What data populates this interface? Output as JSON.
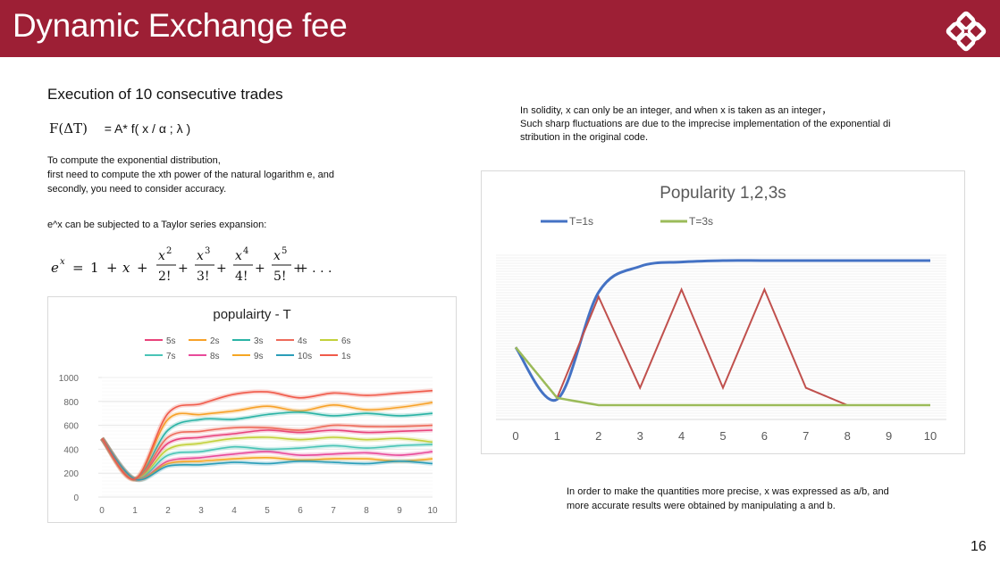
{
  "header": {
    "title": "Dynamic Exchange fee",
    "logo_icon": "diamond-knot-logo"
  },
  "left": {
    "subtitle": "Execution of 10 consecutive trades",
    "formula_lhs": "F(ΔT)",
    "formula_rhs": "= A* f( x / α ; λ )",
    "intro_lines": [
      "To compute the exponential distribution,",
      "first need to compute the xth power of the natural logarithm e, and",
      "secondly, you need to consider accuracy."
    ],
    "taylor_intro": "e^x can be subjected to a Taylor series expansion:",
    "taylor": {
      "lhs_base": "e",
      "lhs_exp": "x",
      "equals": "=",
      "one": "1",
      "plus": "+",
      "x": "x",
      "terms": [
        {
          "num_base": "x",
          "num_exp": "2",
          "den": "2!"
        },
        {
          "num_base": "x",
          "num_exp": "3",
          "den": "3!"
        },
        {
          "num_base": "x",
          "num_exp": "4",
          "den": "4!"
        },
        {
          "num_base": "x",
          "num_exp": "5",
          "den": "5!"
        }
      ],
      "ellipsis": "+ . . ."
    }
  },
  "right": {
    "note_lines": [
      "In solidity, x can only be an integer, and when x is taken as an integer，",
      "Such sharp fluctuations are due to the imprecise implementation of the exponential di",
      "stribution in the original code."
    ],
    "bottom_lines": [
      "In order to make the quantities more precise, x was expressed as a/b, and",
      "more accurate results were obtained by manipulating a and b."
    ]
  },
  "page_number": "16",
  "chart_data": [
    {
      "type": "line",
      "title": "populairty - T",
      "x": [
        0,
        1,
        2,
        3,
        4,
        5,
        6,
        7,
        8,
        9,
        10
      ],
      "xlim": [
        0,
        10
      ],
      "ylim": [
        0,
        1000
      ],
      "yticks": [
        0,
        200,
        400,
        600,
        800,
        1000
      ],
      "grid": true,
      "legend_position": "top",
      "series": [
        {
          "name": "5s",
          "color": "#e8427a",
          "values": [
            490,
            150,
            450,
            500,
            530,
            560,
            540,
            560,
            540,
            550,
            560
          ]
        },
        {
          "name": "2s",
          "color": "#f7a128",
          "values": [
            490,
            150,
            650,
            690,
            720,
            760,
            720,
            770,
            730,
            750,
            790
          ]
        },
        {
          "name": "3s",
          "color": "#2ab3a5",
          "values": [
            490,
            150,
            560,
            650,
            650,
            690,
            710,
            680,
            700,
            680,
            700
          ]
        },
        {
          "name": "4s",
          "color": "#ee6a5a",
          "values": [
            490,
            150,
            500,
            550,
            580,
            580,
            560,
            600,
            590,
            590,
            600
          ]
        },
        {
          "name": "6s",
          "color": "#c2d13a",
          "values": [
            490,
            150,
            400,
            450,
            490,
            500,
            480,
            500,
            480,
            490,
            460
          ]
        },
        {
          "name": "7s",
          "color": "#49c4b6",
          "values": [
            490,
            150,
            350,
            380,
            420,
            400,
            410,
            430,
            410,
            430,
            440
          ]
        },
        {
          "name": "8s",
          "color": "#e84a9a",
          "values": [
            490,
            150,
            300,
            330,
            360,
            380,
            350,
            360,
            370,
            350,
            380
          ]
        },
        {
          "name": "9s",
          "color": "#f5a623",
          "values": [
            490,
            150,
            280,
            300,
            320,
            330,
            310,
            320,
            320,
            300,
            320
          ]
        },
        {
          "name": "10s",
          "color": "#2a9db8",
          "values": [
            490,
            150,
            260,
            270,
            290,
            280,
            300,
            290,
            280,
            300,
            280
          ]
        },
        {
          "name": "1s",
          "color": "#f05a4a",
          "values": [
            490,
            150,
            700,
            780,
            860,
            880,
            830,
            870,
            850,
            870,
            890
          ]
        }
      ]
    },
    {
      "type": "line",
      "title": "Popularity 1,2,3s",
      "x": [
        0,
        1,
        2,
        3,
        4,
        5,
        6,
        7,
        8,
        9,
        10
      ],
      "xlim": [
        0,
        10
      ],
      "grid": true,
      "legend_position": "top",
      "series": [
        {
          "name": "T=1s",
          "color": "#4472c4",
          "values": [
            0.4,
            0.04,
            0.78,
            0.96,
            0.99,
            1.0,
            1.0,
            1.0,
            1.0,
            1.0,
            1.0
          ]
        },
        {
          "name": "T=3s",
          "color": "#9bbb59",
          "values": [
            0.4,
            0.05,
            0.0,
            0.0,
            0.0,
            0.0,
            0.0,
            0.0,
            0.0,
            0.0,
            0.0
          ]
        },
        {
          "name": "",
          "color": "#c0504d",
          "values": [
            0.4,
            0.05,
            0.75,
            0.12,
            0.8,
            0.12,
            0.8,
            0.12,
            0.0,
            0.0,
            0.0
          ]
        }
      ]
    }
  ]
}
